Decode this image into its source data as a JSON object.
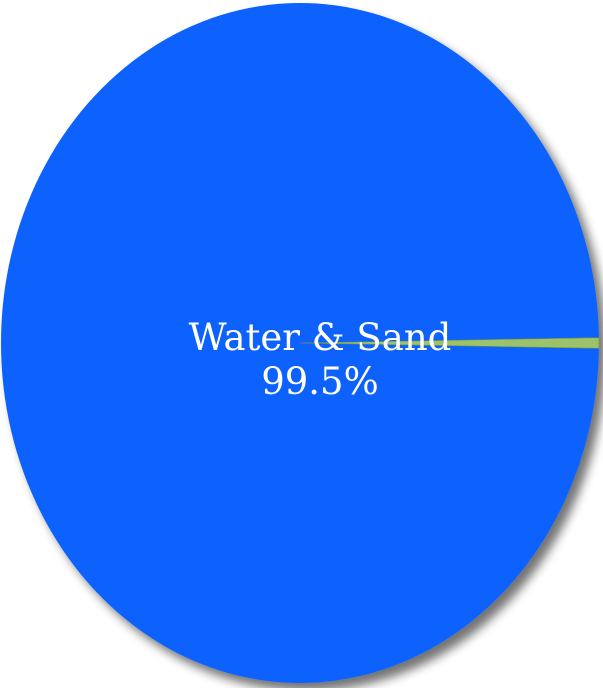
{
  "chart_data": {
    "type": "pie",
    "title": "",
    "slices": [
      {
        "label": "Water & Sand",
        "value": 99.5,
        "value_label": "99.5%",
        "color": "#0f62fe"
      },
      {
        "label": "",
        "value": 0.5,
        "value_label": "",
        "color": "#9cc26a"
      }
    ],
    "legend": "none"
  }
}
